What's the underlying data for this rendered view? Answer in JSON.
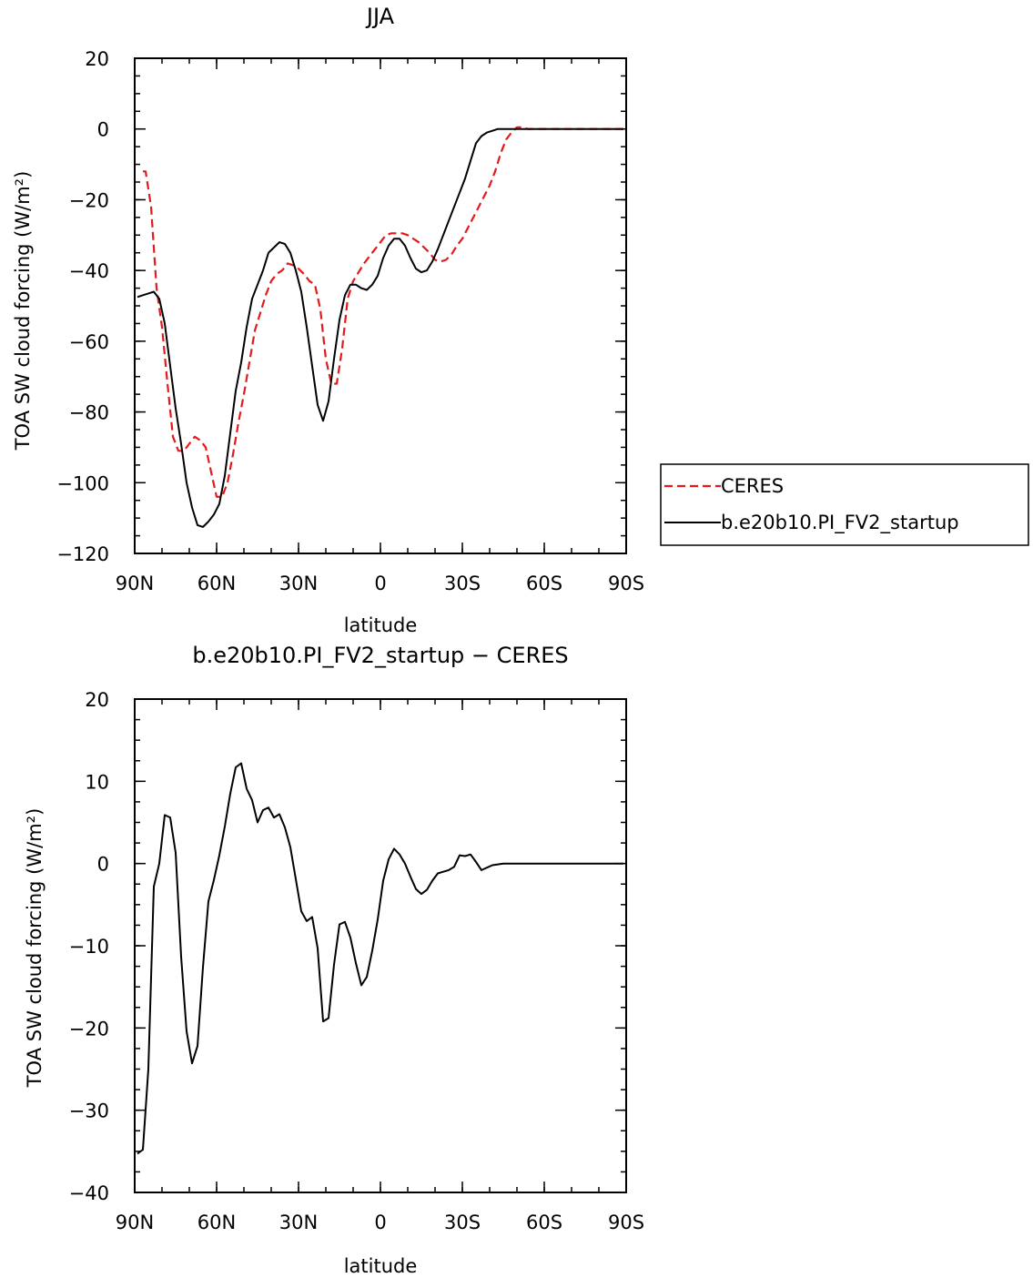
{
  "chart_data": [
    {
      "type": "line",
      "title": "JJA",
      "xlabel": "latitude",
      "ylabel": "TOA SW cloud forcing (W/m²)",
      "xlim": [
        90,
        -90
      ],
      "ylim": [
        -120,
        20
      ],
      "xticks": [
        {
          "value": 90,
          "label": "90N"
        },
        {
          "value": 60,
          "label": "60N"
        },
        {
          "value": 30,
          "label": "30N"
        },
        {
          "value": 0,
          "label": "0"
        },
        {
          "value": -30,
          "label": "30S"
        },
        {
          "value": -60,
          "label": "60S"
        },
        {
          "value": -90,
          "label": "90S"
        }
      ],
      "yticks": [
        {
          "value": 20,
          "label": "20"
        },
        {
          "value": 0,
          "label": "0"
        },
        {
          "value": -20,
          "label": "−20"
        },
        {
          "value": -40,
          "label": "−40"
        },
        {
          "value": -60,
          "label": "−60"
        },
        {
          "value": -80,
          "label": "−80"
        },
        {
          "value": -100,
          "label": "−100"
        },
        {
          "value": -120,
          "label": "−120"
        }
      ],
      "legend": "right",
      "series": [
        {
          "name": "CERES",
          "color": "#e31a1c",
          "dash": "dashed",
          "x": [
            87,
            86,
            84,
            82,
            80,
            78,
            76,
            74,
            72,
            70,
            68,
            66,
            64,
            62,
            60,
            58,
            56,
            54,
            52,
            50,
            48,
            46,
            44,
            42,
            40,
            38,
            36,
            34,
            32,
            30,
            28,
            26,
            24,
            22,
            20,
            18,
            16,
            14,
            12,
            10,
            8,
            6,
            4,
            2,
            0,
            -2,
            -4,
            -6,
            -8,
            -10,
            -12,
            -14,
            -16,
            -18,
            -20,
            -22,
            -24,
            -26,
            -28,
            -30,
            -32,
            -34,
            -36,
            -38,
            -40,
            -42,
            -44,
            -46,
            -48,
            -50,
            -52,
            -54,
            -56,
            -58,
            -60,
            -62,
            -64,
            -66,
            -68,
            -70,
            -72,
            -74,
            -76,
            -78,
            -80,
            -82,
            -84,
            -86,
            -88,
            -90
          ],
          "values": [
            -12,
            -12,
            -22,
            -45,
            -56,
            -72,
            -87,
            -91,
            -91,
            -89,
            -87,
            -88,
            -90,
            -97,
            -104,
            -104,
            -100,
            -92,
            -83,
            -75,
            -66,
            -57,
            -52,
            -47,
            -43,
            -41,
            -40,
            -38,
            -38.5,
            -39.5,
            -41,
            -43,
            -44,
            -51,
            -65,
            -72,
            -72,
            -62,
            -48,
            -43,
            -40.5,
            -38,
            -36,
            -34,
            -32,
            -30,
            -29.5,
            -29.5,
            -29.5,
            -30,
            -31,
            -32,
            -33.5,
            -35,
            -37,
            -37.5,
            -37,
            -35.5,
            -33,
            -31,
            -28,
            -25,
            -22,
            -19,
            -16,
            -12,
            -7,
            -3,
            -1,
            0.5,
            0.5,
            0,
            0,
            0,
            0,
            0,
            0,
            0,
            0,
            0,
            0,
            0,
            0,
            0,
            0,
            0,
            0,
            0,
            0,
            0
          ]
        },
        {
          "name": "b.e20b10.PI_FV2_startup",
          "color": "#000000",
          "dash": "solid",
          "x": [
            89,
            87,
            85,
            83,
            81,
            79,
            77,
            75,
            73,
            71,
            69,
            67,
            65,
            63,
            61,
            59,
            57,
            55,
            53,
            51,
            49,
            47,
            45,
            43,
            41,
            39,
            37,
            35,
            33,
            31,
            29,
            27,
            25,
            23,
            21,
            19,
            17,
            15,
            13,
            11,
            9,
            7,
            5,
            3,
            1,
            -1,
            -3,
            -5,
            -7,
            -9,
            -11,
            -13,
            -15,
            -17,
            -19,
            -21,
            -23,
            -25,
            -27,
            -29,
            -31,
            -33,
            -35,
            -37,
            -39,
            -41,
            -43,
            -45,
            -47,
            -49,
            -51,
            -53,
            -55,
            -57,
            -59,
            -61,
            -63,
            -65,
            -67,
            -69,
            -71,
            -73,
            -75,
            -77,
            -79,
            -81,
            -83,
            -85,
            -87,
            -89
          ],
          "values": [
            -47.5,
            -47,
            -46.5,
            -46,
            -48,
            -55,
            -67,
            -79,
            -89,
            -100,
            -107,
            -112,
            -112.5,
            -111,
            -109,
            -106,
            -98,
            -86,
            -74,
            -66,
            -56,
            -48,
            -44,
            -40,
            -35,
            -33.5,
            -32,
            -32.5,
            -35,
            -40,
            -46,
            -56,
            -67,
            -78,
            -82.5,
            -77,
            -65,
            -54,
            -47,
            -44,
            -44,
            -45,
            -45.5,
            -44,
            -41.5,
            -36.5,
            -33,
            -31,
            -31,
            -33,
            -36.5,
            -39.5,
            -40.5,
            -40,
            -37.5,
            -34,
            -30,
            -26,
            -22,
            -18,
            -14,
            -9,
            -4,
            -2,
            -1,
            -0.5,
            0,
            0,
            0,
            0,
            0,
            0,
            0,
            0,
            0,
            0,
            0,
            0,
            0,
            0,
            0,
            0,
            0,
            0,
            0,
            0,
            0,
            0,
            0,
            0
          ]
        }
      ]
    },
    {
      "type": "line",
      "title": "b.e20b10.PI_FV2_startup − CERES",
      "xlabel": "latitude",
      "ylabel": "TOA SW cloud forcing (W/m²)",
      "xlim": [
        90,
        -90
      ],
      "ylim": [
        -40,
        20
      ],
      "xticks": [
        {
          "value": 90,
          "label": "90N"
        },
        {
          "value": 60,
          "label": "60N"
        },
        {
          "value": 30,
          "label": "30N"
        },
        {
          "value": 0,
          "label": "0"
        },
        {
          "value": -30,
          "label": "30S"
        },
        {
          "value": -60,
          "label": "60S"
        },
        {
          "value": -90,
          "label": "90S"
        }
      ],
      "yticks": [
        {
          "value": 20,
          "label": "20"
        },
        {
          "value": 10,
          "label": "10"
        },
        {
          "value": 0,
          "label": "0"
        },
        {
          "value": -10,
          "label": "−10"
        },
        {
          "value": -20,
          "label": "−20"
        },
        {
          "value": -30,
          "label": "−30"
        },
        {
          "value": -40,
          "label": "−40"
        }
      ],
      "series": [
        {
          "name": "",
          "color": "#000000",
          "dash": "solid",
          "x": [
            89,
            87,
            85,
            83,
            81,
            79,
            77,
            75,
            73,
            71,
            69,
            67,
            65,
            63,
            61,
            59,
            57,
            55,
            53,
            51,
            49,
            47,
            45,
            43,
            41,
            39,
            37,
            35,
            33,
            31,
            29,
            27,
            25,
            23,
            21,
            19,
            17,
            15,
            13,
            11,
            9,
            7,
            5,
            3,
            1,
            -1,
            -3,
            -5,
            -7,
            -9,
            -11,
            -13,
            -15,
            -17,
            -19,
            -21,
            -23,
            -25,
            -27,
            -29,
            -31,
            -33,
            -35,
            -37,
            -39,
            -41,
            -43,
            -45,
            -47,
            -49,
            -51,
            -53,
            -55,
            -57,
            -59,
            -61,
            -63,
            -65,
            -67,
            -69,
            -71,
            -73,
            -75,
            -77,
            -79,
            -81,
            -83,
            -85,
            -87,
            -89
          ],
          "values": [
            -35.3,
            -34.8,
            -25,
            -2.8,
            0,
            5.9,
            5.6,
            1.3,
            -11.3,
            -20.4,
            -24.3,
            -22.2,
            -12.6,
            -4.6,
            -2,
            1,
            4.5,
            8.5,
            11.7,
            12.2,
            9.1,
            7.7,
            5,
            6.5,
            6.8,
            5.6,
            6,
            4.4,
            2,
            -1.9,
            -5.8,
            -7,
            -6.5,
            -10.3,
            -19.2,
            -18.8,
            -12.3,
            -7.4,
            -7.1,
            -9,
            -12.1,
            -14.8,
            -13.8,
            -10.6,
            -6.8,
            -2.1,
            0.5,
            1.8,
            1.1,
            0,
            -1.6,
            -3.1,
            -3.7,
            -3.2,
            -2.1,
            -1.2,
            -1,
            -0.8,
            -0.4,
            1,
            0.9,
            1.1,
            0.2,
            -0.8,
            -0.5,
            -0.2,
            -0.1,
            0,
            0,
            0,
            0,
            0,
            0,
            0,
            0,
            0,
            0,
            0,
            0,
            0,
            0,
            0,
            0,
            0,
            0,
            0,
            0,
            0,
            0,
            0
          ]
        }
      ]
    }
  ]
}
